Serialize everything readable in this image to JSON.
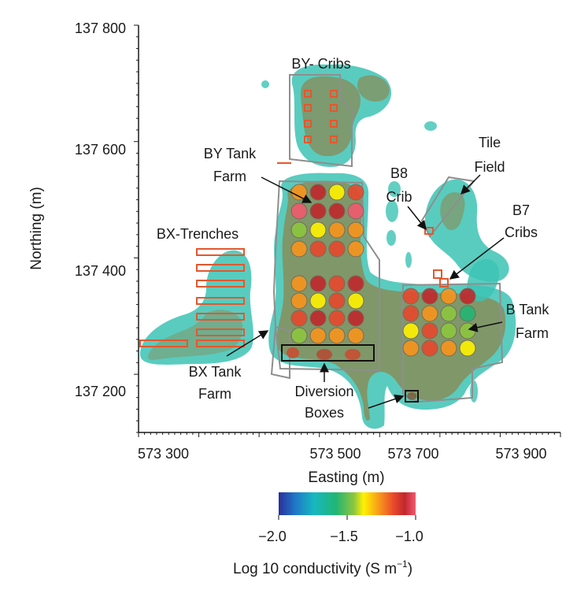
{
  "axes": {
    "x_label": "Easting (m)",
    "y_label": "Northing (m)",
    "x_ticks": [
      "573 300",
      "573 500",
      "573 700",
      "573 900"
    ],
    "y_ticks": [
      "137 800",
      "137 600",
      "137 400",
      "137 200"
    ],
    "x_range": [
      573300,
      573990
    ],
    "y_range": [
      137130,
      137800
    ]
  },
  "areas": {
    "by_cribs": "BY- Cribs",
    "by_tank_farm_1": "BY Tank",
    "by_tank_farm_2": "Farm",
    "bx_trenches": "BX-Trenches",
    "bx_tank_farm_1": "BX Tank",
    "bx_tank_farm_2": "Farm",
    "diversion_1": "Diversion",
    "diversion_2": "Boxes",
    "b8_crib_1": "B8",
    "b8_crib_2": "Crib",
    "tile_field_1": "Tile",
    "tile_field_2": "Field",
    "b7_cribs_1": "B7",
    "b7_cribs_2": "Cribs",
    "b_tank_farm_1": "B Tank",
    "b_tank_farm_2": "Farm"
  },
  "colorbar": {
    "title": "Log 10 conductivity (S m",
    "title_exp": "−1",
    "title_end": ")",
    "ticks": [
      "−2.0",
      "−1.5",
      "−1.0"
    ],
    "min": -2.0,
    "max": -1.0,
    "colors": [
      "#2a2f9a",
      "#1f78c8",
      "#17b8c0",
      "#22b573",
      "#8dc63f",
      "#fff200",
      "#f7941d",
      "#e8482c",
      "#c1272d",
      "#f05a6e"
    ]
  },
  "colors": {
    "anomaly_teal": "#3cc3b4",
    "anomaly_core": "#8a8a55",
    "boundary_gray": "#8e8e8e",
    "crib_red": "#e4572e"
  },
  "tanks": {
    "by_values": [
      -1.3,
      -1.15,
      -1.5,
      -1.25,
      -1.0,
      -1.1,
      -1.15,
      -1.05,
      -1.6,
      -1.45,
      -1.35,
      -1.3,
      -1.3,
      -1.2,
      -1.25,
      -1.3
    ],
    "bx_values": [
      -1.3,
      -1.1,
      -1.2,
      -1.15,
      -1.35,
      -1.4,
      -1.2,
      -1.45,
      -1.25,
      -1.1,
      -1.25,
      -1.15,
      -1.55,
      -1.35,
      -1.3,
      -1.3
    ],
    "b_values": [
      -1.2,
      -1.1,
      -1.35,
      -1.15,
      -1.2,
      -1.3,
      -1.55,
      -1.7,
      -1.4,
      -1.25,
      -1.55,
      -1.6,
      -1.35,
      -1.2,
      -1.35,
      -1.4
    ]
  }
}
